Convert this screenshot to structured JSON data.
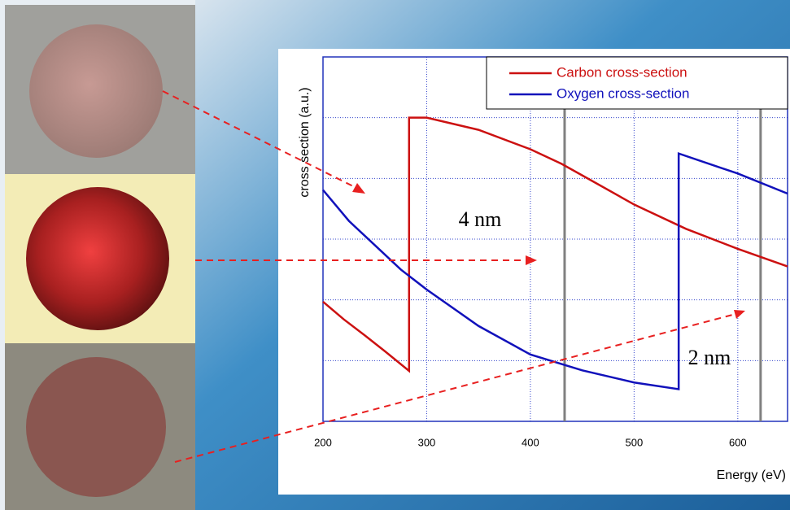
{
  "chart_data": {
    "type": "line",
    "xlabel": "Energy (eV)",
    "ylabel": "cross section (a.u.)",
    "xlim": [
      200,
      648
    ],
    "ylim": [
      0,
      6
    ],
    "xticks": [
      200,
      300,
      400,
      500,
      600
    ],
    "yticks": [
      1,
      2,
      3,
      4,
      5
    ],
    "grid": true,
    "legend": "upper right",
    "series": [
      {
        "name": "Carbon cross-section",
        "color": "#cc1111",
        "x": [
          200,
          220,
          240,
          260,
          283,
          283,
          300,
          350,
          400,
          430,
          450,
          500,
          550,
          600,
          648
        ],
        "values": [
          1.97,
          1.68,
          1.42,
          1.15,
          0.83,
          5.0,
          5.0,
          4.8,
          4.48,
          4.24,
          4.05,
          3.57,
          3.17,
          2.84,
          2.55
        ]
      },
      {
        "name": "Oxygen cross-section",
        "color": "#1111bb",
        "x": [
          200,
          225,
          250,
          275,
          300,
          350,
          400,
          450,
          500,
          543,
          543,
          600,
          648
        ],
        "values": [
          3.81,
          3.3,
          2.9,
          2.5,
          2.17,
          1.57,
          1.1,
          0.84,
          0.64,
          0.53,
          4.41,
          4.08,
          3.75
        ]
      }
    ],
    "markers": [
      433,
      622
    ],
    "annotations": [
      "4 nm",
      "2 nm"
    ]
  }
}
